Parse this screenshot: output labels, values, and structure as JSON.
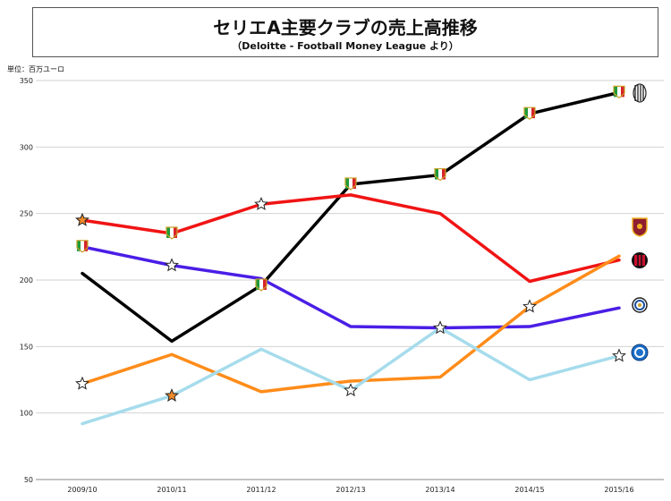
{
  "title": "セリエA主要クラブの売上高推移",
  "subtitle": "（Deloitte - Football Money League より）",
  "unit_label": "単位：百万ユーロ",
  "chart_data": {
    "type": "line",
    "x": [
      "2009/10",
      "2010/11",
      "2011/12",
      "2012/13",
      "2013/14",
      "2014/15",
      "2015/16"
    ],
    "ylim": [
      50,
      350
    ],
    "yticks": [
      50,
      100,
      150,
      200,
      250,
      300,
      350
    ],
    "grid": "horizontal",
    "legend": "club-logos-right",
    "series": [
      {
        "club_icon": "juventus-logo-icon",
        "color": "#000000",
        "values": [
          205,
          154,
          196,
          272,
          279,
          325,
          341
        ],
        "markers": [
          "none",
          "none",
          "italy-shield",
          "italy-shield",
          "italy-shield",
          "italy-shield",
          "italy-shield"
        ]
      },
      {
        "club_icon": "ac-milan-logo-icon",
        "color": "#f01414",
        "values": [
          245,
          235,
          257,
          264,
          250,
          199,
          215
        ],
        "markers": [
          "star-filled",
          "italy-shield",
          "star",
          "none",
          "none",
          "none",
          "none"
        ]
      },
      {
        "club_icon": "inter-logo-icon",
        "color": "#4a1ee6",
        "values": [
          225,
          211,
          201,
          165,
          164,
          165,
          179
        ],
        "markers": [
          "italy-shield",
          "star",
          "none",
          "none",
          "none",
          "none",
          "none"
        ]
      },
      {
        "club_icon": "as-roma-logo-icon",
        "color": "#ff8c1a",
        "values": [
          122,
          144,
          116,
          124,
          127,
          180,
          218
        ],
        "markers": [
          "star",
          "none",
          "none",
          "none",
          "none",
          "star",
          "none"
        ]
      },
      {
        "club_icon": "napoli-logo-icon",
        "color": "#a6dcec",
        "values": [
          92,
          113,
          148,
          117,
          164,
          125,
          143
        ],
        "markers": [
          "none",
          "star-filled",
          "none",
          "star",
          "star",
          "none",
          "star"
        ]
      }
    ]
  }
}
